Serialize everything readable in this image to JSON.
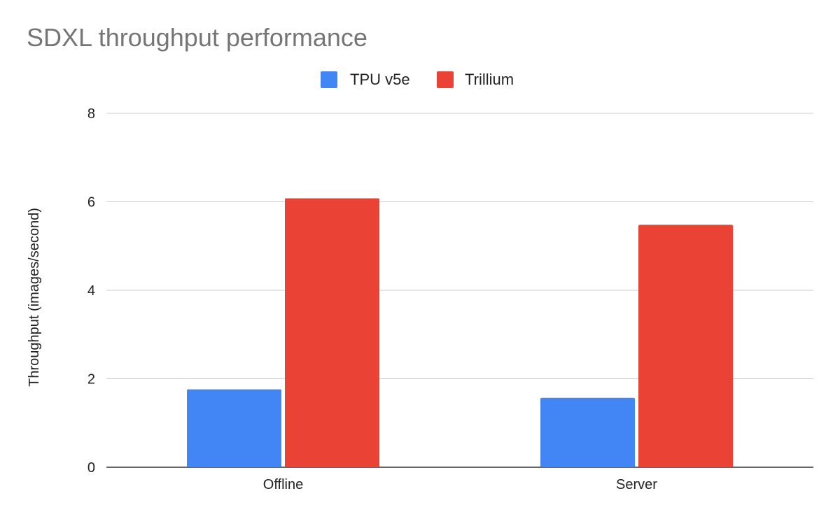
{
  "chart_data": {
    "type": "bar",
    "title": "SDXL throughput performance",
    "xlabel": "",
    "ylabel": "Throughput (images/second)",
    "categories": [
      "Offline",
      "Server"
    ],
    "series": [
      {
        "name": "TPU v5e",
        "color": "#4285f4",
        "values": [
          1.76,
          1.57
        ]
      },
      {
        "name": "Trillium",
        "color": "#ea4335",
        "values": [
          6.08,
          5.48
        ]
      }
    ],
    "ylim": [
      0,
      8
    ],
    "yticks": [
      "0",
      "2",
      "4",
      "6",
      "8"
    ],
    "grid": true,
    "legend_position": "top-center"
  }
}
